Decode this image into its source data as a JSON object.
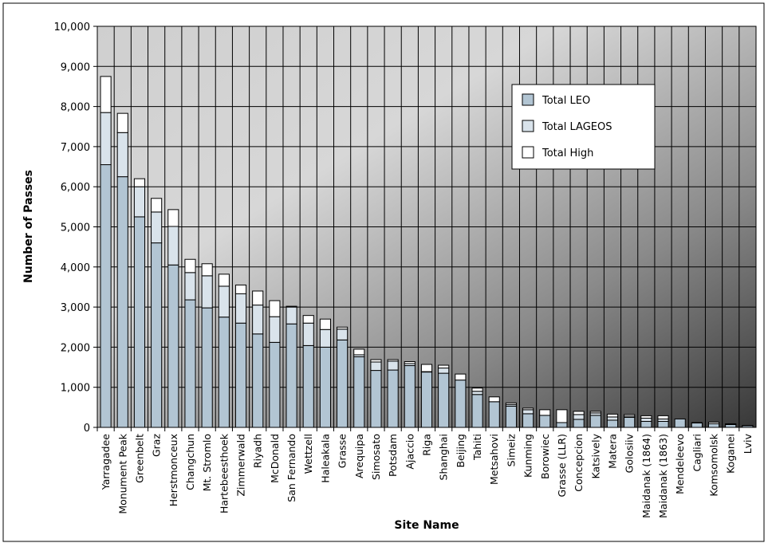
{
  "chart_data": {
    "type": "bar",
    "stacked": true,
    "xlabel": "Site Name",
    "ylabel": "Number of Passes",
    "ylim": [
      0,
      10000
    ],
    "yticks": [
      "0",
      "1,000",
      "2,000",
      "3,000",
      "4,000",
      "5,000",
      "6,000",
      "7,000",
      "8,000",
      "9,000",
      "10,000"
    ],
    "ytick_values": [
      0,
      1000,
      2000,
      3000,
      4000,
      5000,
      6000,
      7000,
      8000,
      9000,
      10000
    ],
    "grid": true,
    "legend_position": "top-right",
    "categories": [
      "Yarragadee",
      "Monument Peak",
      "Greenbelt",
      "Graz",
      "Herstmonceux",
      "Changchun",
      "Mt. Stromlo",
      "Hartebeesthoek",
      "Zimmerwald",
      "Riyadh",
      "McDonald",
      "San Fernando",
      "Wettzell",
      "Haleakala",
      "Grasse",
      "Arequipa",
      "Simosato",
      "Potsdam",
      "Ajaccio",
      "Riga",
      "Shanghai",
      "Beijing",
      "Tahiti",
      "Metsahovi",
      "Simeiz",
      "Kunming",
      "Borowiec",
      "Grasse (LLR)",
      "Concepcion",
      "Katsively",
      "Matera",
      "Golosiiv",
      "Maidanak (1864)",
      "Maidanak (1863)",
      "Mendeleevo",
      "Cagliari",
      "Komsomolsk",
      "Koganei",
      "Lviv"
    ],
    "series": [
      {
        "name": "Total LEO",
        "color": "#b2c5d3",
        "values": [
          6550,
          6250,
          5250,
          4600,
          4050,
          3180,
          2980,
          2750,
          2600,
          2330,
          2120,
          2580,
          2040,
          2000,
          2180,
          1760,
          1420,
          1430,
          1540,
          1380,
          1350,
          1180,
          820,
          640,
          530,
          340,
          300,
          120,
          200,
          300,
          180,
          250,
          150,
          150,
          210,
          110,
          90,
          70,
          40
        ]
      },
      {
        "name": "Total LAGEOS",
        "color": "#d9e3eb",
        "values": [
          1300,
          1100,
          750,
          770,
          960,
          680,
          800,
          770,
          730,
          720,
          640,
          420,
          560,
          440,
          270,
          50,
          210,
          220,
          50,
          10,
          130,
          0,
          80,
          0,
          40,
          100,
          0,
          0,
          120,
          60,
          80,
          30,
          80,
          60,
          0,
          0,
          0,
          0,
          0
        ]
      },
      {
        "name": "Total High",
        "color": "#ffffff",
        "values": [
          900,
          480,
          200,
          340,
          420,
          330,
          300,
          300,
          220,
          350,
          400,
          20,
          190,
          260,
          50,
          140,
          60,
          40,
          50,
          180,
          70,
          150,
          80,
          120,
          40,
          40,
          140,
          320,
          80,
          40,
          70,
          40,
          60,
          80,
          0,
          10,
          40,
          20,
          10
        ]
      }
    ]
  }
}
